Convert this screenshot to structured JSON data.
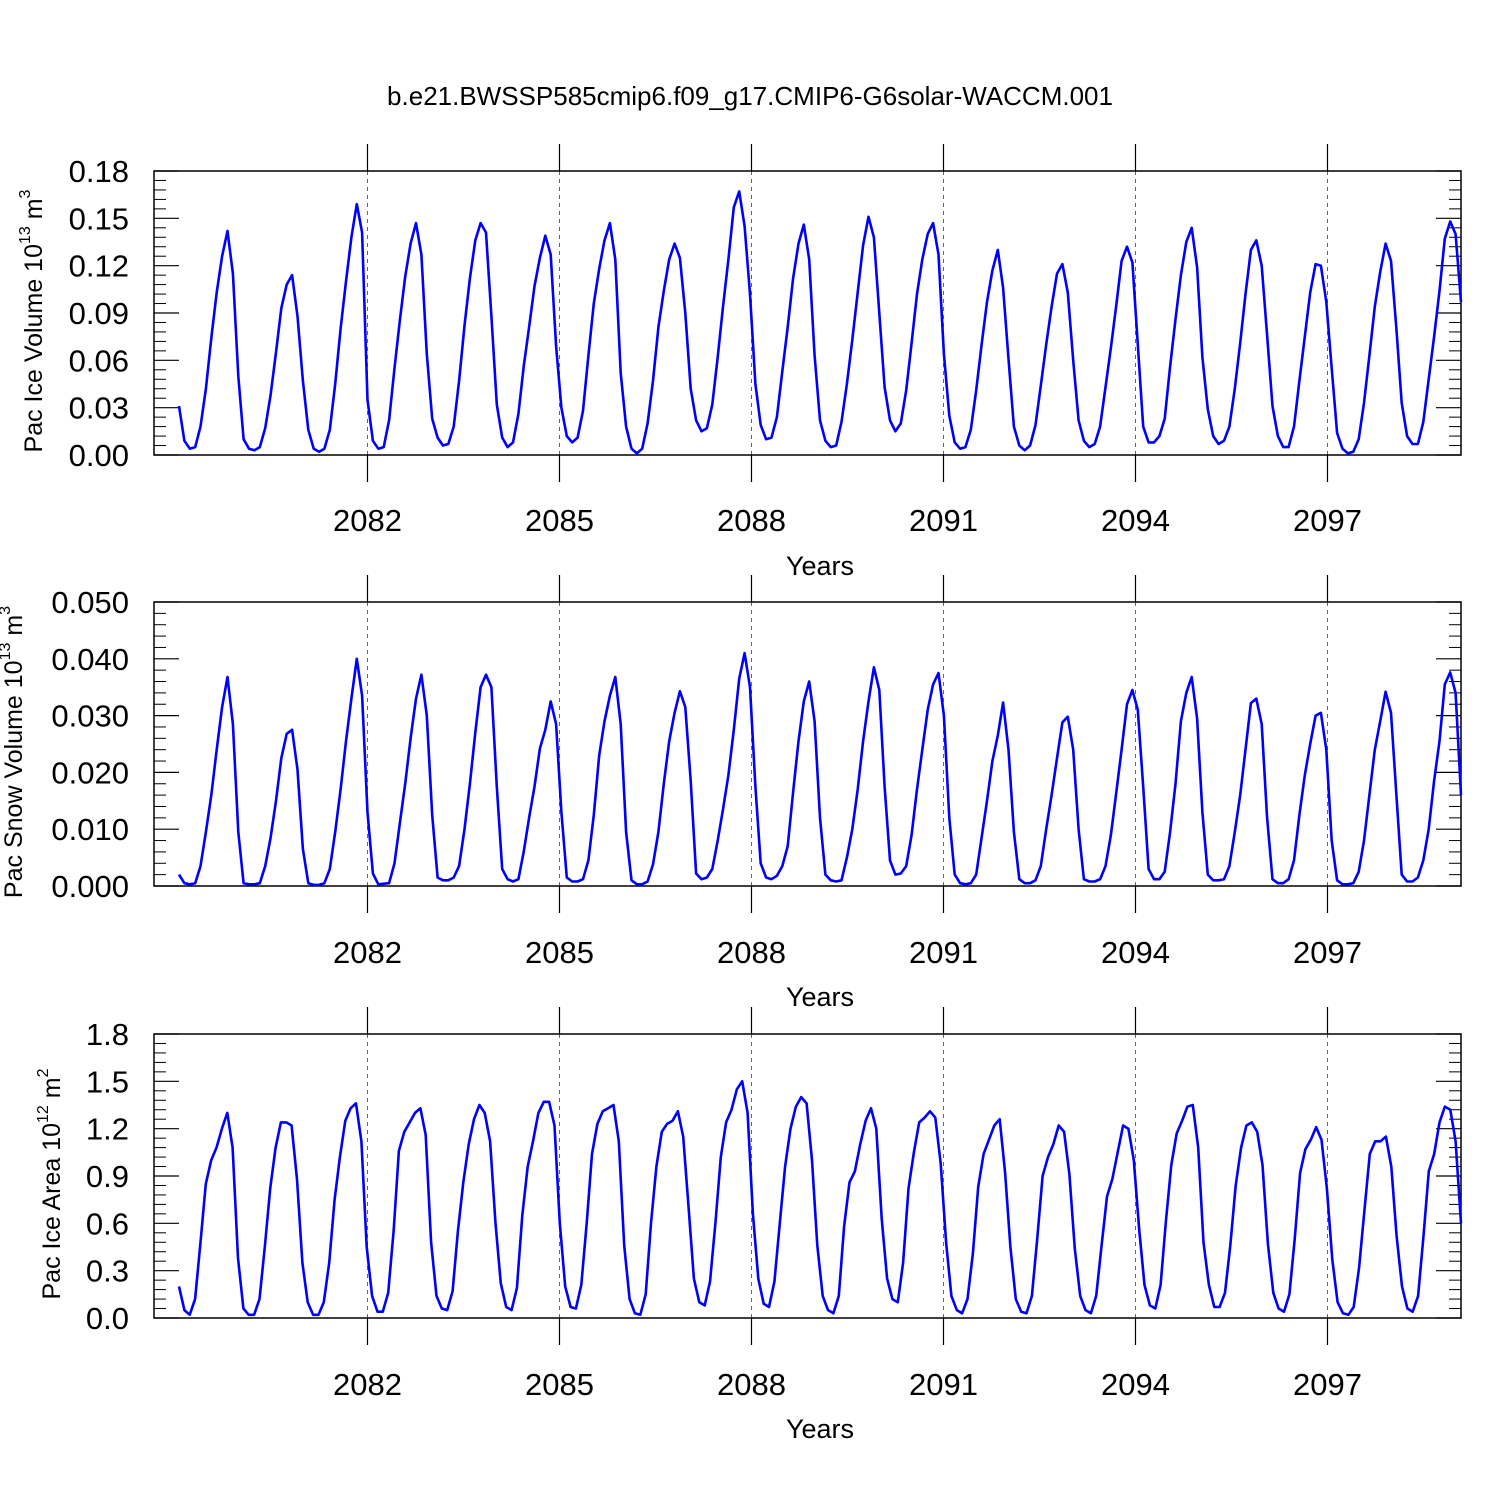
{
  "title": "b.e21.BWSSP585cmip6.f09_g17.CMIP6-G6solar-WACCM.001",
  "colors": {
    "line": "#0000ff",
    "axes": "#000000",
    "grid": "#666666"
  },
  "chart_data": [
    {
      "type": "line",
      "ylabel": {
        "text": "Pac Ice Volume 10",
        "exp": "13",
        "unit": " m",
        "unit_exp": "3"
      },
      "xlabel": "Years",
      "ylim": [
        0,
        0.18
      ],
      "yticks": [
        "0.00",
        "0.03",
        "0.06",
        "0.09",
        "0.12",
        "0.15",
        "0.18"
      ],
      "xticks": [
        "2082",
        "2085",
        "2088",
        "2091",
        "2094",
        "2097"
      ],
      "xlim": [
        2079.1,
        2099.3
      ],
      "grid": "dashed vertical at labeled years",
      "series": [
        {
          "values": [
            0.031,
            0.009,
            0.004,
            0.005,
            0.018,
            0.042,
            0.074,
            0.103,
            0.126,
            0.142,
            0.115,
            0.05,
            0.01,
            0.004,
            0.003,
            0.005,
            0.017,
            0.038,
            0.065,
            0.093,
            0.108,
            0.114,
            0.088,
            0.047,
            0.016,
            0.004,
            0.002,
            0.004,
            0.016,
            0.045,
            0.08,
            0.11,
            0.138,
            0.159,
            0.141,
            0.035,
            0.009,
            0.004,
            0.005,
            0.022,
            0.055,
            0.085,
            0.113,
            0.134,
            0.147,
            0.127,
            0.064,
            0.023,
            0.011,
            0.006,
            0.007,
            0.018,
            0.047,
            0.082,
            0.112,
            0.136,
            0.147,
            0.141,
            0.088,
            0.032,
            0.011,
            0.005,
            0.008,
            0.026,
            0.056,
            0.081,
            0.107,
            0.125,
            0.139,
            0.127,
            0.069,
            0.03,
            0.012,
            0.008,
            0.011,
            0.028,
            0.063,
            0.096,
            0.118,
            0.136,
            0.147,
            0.124,
            0.052,
            0.018,
            0.004,
            0.001,
            0.004,
            0.02,
            0.047,
            0.081,
            0.104,
            0.124,
            0.134,
            0.125,
            0.09,
            0.042,
            0.022,
            0.015,
            0.017,
            0.032,
            0.062,
            0.094,
            0.124,
            0.157,
            0.167,
            0.145,
            0.102,
            0.045,
            0.019,
            0.01,
            0.011,
            0.024,
            0.053,
            0.081,
            0.112,
            0.134,
            0.146,
            0.124,
            0.063,
            0.022,
            0.009,
            0.005,
            0.006,
            0.021,
            0.045,
            0.073,
            0.103,
            0.133,
            0.151,
            0.138,
            0.09,
            0.043,
            0.022,
            0.015,
            0.02,
            0.041,
            0.071,
            0.102,
            0.124,
            0.14,
            0.147,
            0.127,
            0.064,
            0.025,
            0.008,
            0.004,
            0.005,
            0.016,
            0.041,
            0.07,
            0.097,
            0.117,
            0.13,
            0.106,
            0.061,
            0.018,
            0.006,
            0.003,
            0.006,
            0.019,
            0.044,
            0.07,
            0.094,
            0.115,
            0.121,
            0.103,
            0.06,
            0.022,
            0.009,
            0.005,
            0.007,
            0.018,
            0.043,
            0.068,
            0.095,
            0.123,
            0.132,
            0.122,
            0.07,
            0.018,
            0.008,
            0.008,
            0.012,
            0.023,
            0.056,
            0.086,
            0.114,
            0.135,
            0.144,
            0.119,
            0.062,
            0.029,
            0.012,
            0.007,
            0.009,
            0.018,
            0.042,
            0.071,
            0.102,
            0.13,
            0.136,
            0.12,
            0.076,
            0.031,
            0.012,
            0.005,
            0.005,
            0.018,
            0.047,
            0.075,
            0.103,
            0.121,
            0.12,
            0.097,
            0.055,
            0.014,
            0.004,
            0.001,
            0.002,
            0.01,
            0.033,
            0.063,
            0.094,
            0.116,
            0.134,
            0.123,
            0.08,
            0.033,
            0.012,
            0.007,
            0.007,
            0.021,
            0.048,
            0.075,
            0.104,
            0.137,
            0.148,
            0.14,
            0.097
          ]
        }
      ]
    },
    {
      "type": "line",
      "ylabel": {
        "text": "Pac Snow Volume 10",
        "exp": "13",
        "unit": " m",
        "unit_exp": "3"
      },
      "xlabel": "Years",
      "ylim": [
        0,
        0.05
      ],
      "yticks": [
        "0.000",
        "0.010",
        "0.020",
        "0.030",
        "0.040",
        "0.050"
      ],
      "xticks": [
        "2082",
        "2085",
        "2088",
        "2091",
        "2094",
        "2097"
      ],
      "xlim": [
        2079.1,
        2099.3
      ],
      "grid": "dashed vertical at labeled years",
      "series": [
        {
          "values": [
            0.002,
            0.0005,
            0.0003,
            0.0005,
            0.0035,
            0.0095,
            0.016,
            0.024,
            0.0315,
            0.0368,
            0.0285,
            0.0095,
            0.0005,
            0.0003,
            0.0003,
            0.0005,
            0.0035,
            0.0085,
            0.015,
            0.0225,
            0.0268,
            0.0275,
            0.0205,
            0.0065,
            0.0005,
            0.0002,
            0.0002,
            0.0005,
            0.003,
            0.0095,
            0.017,
            0.0255,
            0.033,
            0.04,
            0.0335,
            0.013,
            0.0022,
            0.0003,
            0.0004,
            0.0005,
            0.004,
            0.011,
            0.018,
            0.026,
            0.033,
            0.0372,
            0.03,
            0.0125,
            0.0015,
            0.001,
            0.001,
            0.0015,
            0.0035,
            0.01,
            0.018,
            0.027,
            0.035,
            0.0372,
            0.035,
            0.0175,
            0.003,
            0.0012,
            0.0008,
            0.0012,
            0.006,
            0.012,
            0.0175,
            0.0242,
            0.0275,
            0.0325,
            0.0285,
            0.013,
            0.0015,
            0.0008,
            0.0008,
            0.0012,
            0.0045,
            0.0125,
            0.023,
            0.029,
            0.0335,
            0.0368,
            0.0285,
            0.0095,
            0.001,
            0.0003,
            0.0003,
            0.0008,
            0.0038,
            0.0095,
            0.018,
            0.0255,
            0.0305,
            0.0343,
            0.0315,
            0.0185,
            0.0022,
            0.0012,
            0.0015,
            0.003,
            0.008,
            0.0135,
            0.0195,
            0.0275,
            0.0365,
            0.041,
            0.035,
            0.0175,
            0.004,
            0.0015,
            0.0012,
            0.0018,
            0.0035,
            0.007,
            0.0165,
            0.0255,
            0.0325,
            0.036,
            0.029,
            0.012,
            0.002,
            0.001,
            0.0008,
            0.001,
            0.005,
            0.01,
            0.017,
            0.0255,
            0.0325,
            0.0385,
            0.0345,
            0.0175,
            0.0045,
            0.002,
            0.0022,
            0.0035,
            0.009,
            0.017,
            0.024,
            0.031,
            0.0355,
            0.0375,
            0.03,
            0.012,
            0.002,
            0.0005,
            0.0003,
            0.0005,
            0.002,
            0.0085,
            0.015,
            0.022,
            0.0265,
            0.0323,
            0.024,
            0.0095,
            0.0012,
            0.0005,
            0.0005,
            0.001,
            0.0035,
            0.01,
            0.016,
            0.0225,
            0.0288,
            0.0298,
            0.024,
            0.01,
            0.0012,
            0.0008,
            0.0008,
            0.0012,
            0.0035,
            0.009,
            0.0165,
            0.024,
            0.032,
            0.0345,
            0.031,
            0.0175,
            0.003,
            0.0012,
            0.0012,
            0.0025,
            0.0095,
            0.018,
            0.029,
            0.034,
            0.0368,
            0.0295,
            0.013,
            0.002,
            0.001,
            0.001,
            0.0012,
            0.0035,
            0.0095,
            0.016,
            0.024,
            0.0322,
            0.033,
            0.0285,
            0.012,
            0.0012,
            0.0005,
            0.0005,
            0.0012,
            0.0045,
            0.0125,
            0.0195,
            0.025,
            0.03,
            0.0305,
            0.024,
            0.008,
            0.001,
            0.0003,
            0.0003,
            0.0005,
            0.0025,
            0.008,
            0.016,
            0.024,
            0.029,
            0.0342,
            0.0305,
            0.016,
            0.002,
            0.0008,
            0.0008,
            0.0015,
            0.0045,
            0.01,
            0.0185,
            0.0255,
            0.0355,
            0.0376,
            0.034,
            0.016
          ]
        }
      ]
    },
    {
      "type": "line",
      "ylabel": {
        "text": "Pac Ice Area 10",
        "exp": "12",
        "unit": " m",
        "unit_exp": "2"
      },
      "xlabel": "Years",
      "ylim": [
        0,
        1.8
      ],
      "yticks": [
        "0.0",
        "0.3",
        "0.6",
        "0.9",
        "1.2",
        "1.5",
        "1.8"
      ],
      "xticks": [
        "2082",
        "2085",
        "2088",
        "2091",
        "2094",
        "2097"
      ],
      "xlim": [
        2079.1,
        2099.3
      ],
      "grid": "dashed vertical at labeled years",
      "series": [
        {
          "values": [
            0.2,
            0.05,
            0.02,
            0.12,
            0.48,
            0.85,
            1.0,
            1.08,
            1.2,
            1.3,
            1.08,
            0.38,
            0.06,
            0.02,
            0.02,
            0.12,
            0.45,
            0.82,
            1.08,
            1.24,
            1.24,
            1.22,
            0.88,
            0.35,
            0.1,
            0.02,
            0.02,
            0.1,
            0.35,
            0.75,
            1.02,
            1.25,
            1.33,
            1.36,
            1.12,
            0.45,
            0.14,
            0.04,
            0.04,
            0.16,
            0.55,
            1.06,
            1.18,
            1.24,
            1.3,
            1.33,
            1.16,
            0.48,
            0.14,
            0.06,
            0.05,
            0.17,
            0.55,
            0.86,
            1.1,
            1.26,
            1.35,
            1.3,
            1.12,
            0.6,
            0.22,
            0.07,
            0.05,
            0.19,
            0.65,
            0.96,
            1.12,
            1.3,
            1.37,
            1.37,
            1.22,
            0.6,
            0.2,
            0.07,
            0.06,
            0.21,
            0.6,
            1.04,
            1.23,
            1.31,
            1.33,
            1.35,
            1.12,
            0.46,
            0.12,
            0.03,
            0.02,
            0.15,
            0.6,
            0.96,
            1.18,
            1.23,
            1.25,
            1.31,
            1.15,
            0.7,
            0.25,
            0.1,
            0.08,
            0.23,
            0.6,
            1.02,
            1.24,
            1.32,
            1.45,
            1.5,
            1.3,
            0.66,
            0.25,
            0.09,
            0.07,
            0.23,
            0.6,
            0.96,
            1.2,
            1.34,
            1.4,
            1.36,
            1.0,
            0.46,
            0.14,
            0.05,
            0.03,
            0.14,
            0.58,
            0.86,
            0.93,
            1.1,
            1.25,
            1.33,
            1.2,
            0.63,
            0.25,
            0.12,
            0.1,
            0.35,
            0.82,
            1.05,
            1.24,
            1.27,
            1.31,
            1.27,
            0.98,
            0.48,
            0.14,
            0.05,
            0.03,
            0.12,
            0.41,
            0.83,
            1.04,
            1.13,
            1.22,
            1.26,
            0.92,
            0.45,
            0.12,
            0.04,
            0.03,
            0.14,
            0.5,
            0.9,
            1.02,
            1.1,
            1.22,
            1.18,
            0.91,
            0.44,
            0.14,
            0.05,
            0.03,
            0.14,
            0.46,
            0.77,
            0.88,
            1.05,
            1.22,
            1.2,
            1.0,
            0.56,
            0.21,
            0.08,
            0.06,
            0.21,
            0.62,
            0.97,
            1.17,
            1.25,
            1.34,
            1.35,
            1.08,
            0.48,
            0.21,
            0.07,
            0.07,
            0.16,
            0.46,
            0.84,
            1.08,
            1.22,
            1.24,
            1.18,
            0.97,
            0.47,
            0.16,
            0.06,
            0.04,
            0.15,
            0.5,
            0.92,
            1.07,
            1.13,
            1.21,
            1.13,
            0.82,
            0.37,
            0.1,
            0.03,
            0.02,
            0.07,
            0.32,
            0.68,
            1.04,
            1.12,
            1.12,
            1.15,
            0.96,
            0.52,
            0.2,
            0.06,
            0.04,
            0.14,
            0.52,
            0.93,
            1.04,
            1.24,
            1.34,
            1.32,
            1.12,
            0.6
          ]
        }
      ]
    }
  ]
}
